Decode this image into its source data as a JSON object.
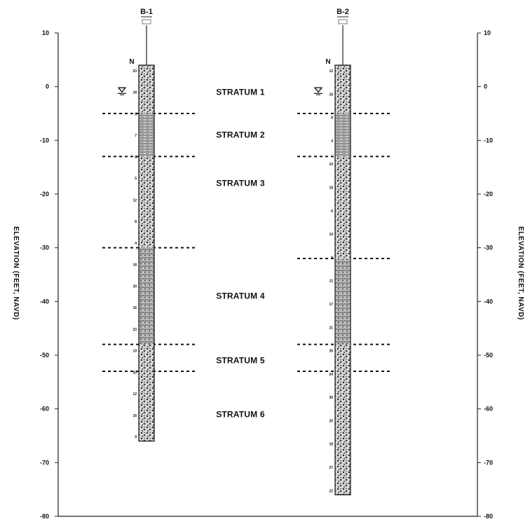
{
  "axis": {
    "left_title": "ELEVATION (FEET, NAVD)",
    "right_title": "ELEVATION (FEET, NAVD)",
    "ticks_left": [
      "10",
      "0",
      "-10",
      "-20",
      "-30",
      "-40",
      "-50",
      "-60",
      "-70",
      "-80"
    ],
    "ticks_right": [
      "10",
      "0",
      "-10",
      "-20",
      "-30",
      "-40",
      "-50",
      "-60",
      "-70",
      "-80"
    ],
    "range": [
      -80,
      10
    ]
  },
  "borings": [
    {
      "name": "B-1",
      "n_label": "N",
      "top_elev": 4,
      "bottom_elev": -66,
      "water_elev": -1,
      "boundaries": [
        -5,
        -13,
        -30,
        -48,
        -53
      ],
      "n_values": [
        "23",
        "18",
        "8",
        "7",
        "6",
        "5",
        "12",
        "8",
        "4",
        "18",
        "30",
        "16",
        "23",
        "10",
        "20",
        "12",
        "16",
        "9"
      ]
    },
    {
      "name": "B-2",
      "n_label": "N",
      "top_elev": 4,
      "bottom_elev": -76,
      "water_elev": -1,
      "boundaries": [
        -5,
        -13,
        -32,
        -48,
        -53
      ],
      "n_values": [
        "12",
        "16",
        "8",
        "4",
        "10",
        "18",
        "6",
        "14",
        "9",
        "12",
        "17",
        "21",
        "26",
        "24",
        "30",
        "20",
        "18",
        "27",
        "22"
      ]
    }
  ],
  "strata": [
    {
      "label": "STRATUM 1",
      "elev": -1
    },
    {
      "label": "STRATUM 2",
      "elev": -9
    },
    {
      "label": "STRATUM 3",
      "elev": -18
    },
    {
      "label": "STRATUM 4",
      "elev": -39
    },
    {
      "label": "STRATUM 5",
      "elev": -51
    },
    {
      "label": "STRATUM 6",
      "elev": -61
    }
  ]
}
